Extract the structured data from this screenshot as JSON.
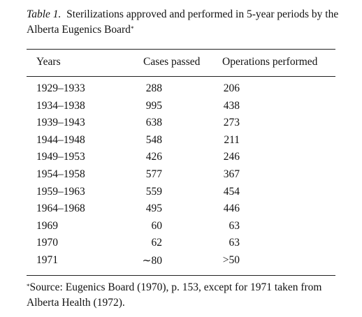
{
  "caption": {
    "label": "Table 1.",
    "text": "Sterilizations approved and performed in 5-year periods by the Alberta Eugenics Board",
    "marker": "*"
  },
  "table": {
    "header": [
      "Years",
      "Cases passed",
      "Operations performed"
    ],
    "rows": [
      [
        "1929–1933",
        288,
        206
      ],
      [
        "1934–1938",
        995,
        438
      ],
      [
        "1939–1943",
        638,
        273
      ],
      [
        "1944–1948",
        548,
        211
      ],
      [
        "1949–1953",
        426,
        246
      ],
      [
        "1954–1958",
        577,
        367
      ],
      [
        "1959–1963",
        559,
        454
      ],
      [
        "1964–1968",
        495,
        446
      ],
      [
        "1969",
        60,
        63
      ],
      [
        "1970",
        62,
        63
      ],
      [
        "1971",
        "∼80",
        ">50"
      ]
    ]
  },
  "footnote": {
    "marker": "*",
    "text": "Source: Eugenics Board (1970), p. 153, except for 1971 taken from Alberta Health (1972)."
  }
}
